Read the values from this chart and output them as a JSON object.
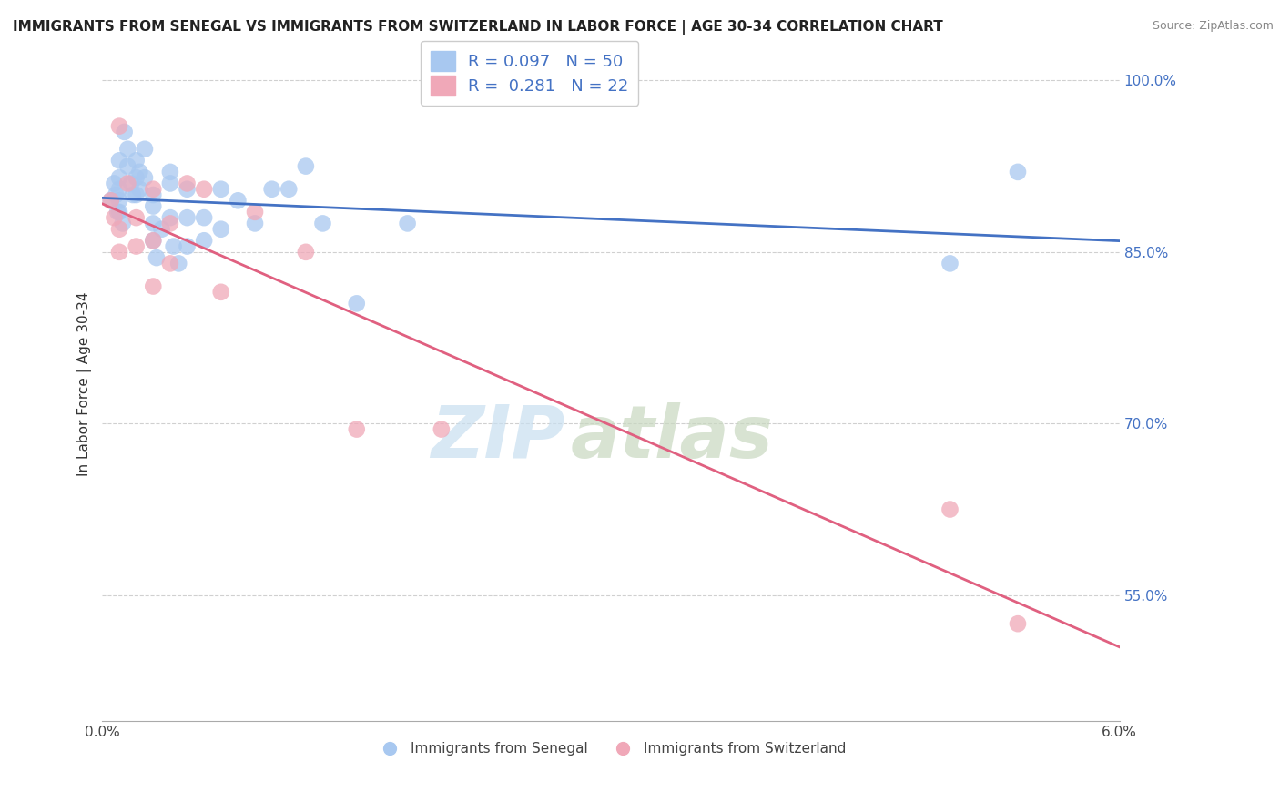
{
  "title": "IMMIGRANTS FROM SENEGAL VS IMMIGRANTS FROM SWITZERLAND IN LABOR FORCE | AGE 30-34 CORRELATION CHART",
  "source": "Source: ZipAtlas.com",
  "xlabel": "",
  "ylabel": "In Labor Force | Age 30-34",
  "xlim": [
    0.0,
    0.06
  ],
  "ylim": [
    0.44,
    1.03
  ],
  "yticks": [
    0.55,
    0.7,
    0.85,
    1.0
  ],
  "ytick_labels": [
    "55.0%",
    "70.0%",
    "85.0%",
    "100.0%"
  ],
  "xticks": [
    0.0,
    0.01,
    0.02,
    0.03,
    0.04,
    0.05,
    0.06
  ],
  "xtick_labels": [
    "0.0%",
    "",
    "",
    "",
    "",
    "",
    "6.0%"
  ],
  "senegal_R": 0.097,
  "senegal_N": 50,
  "switzerland_R": 0.281,
  "switzerland_N": 22,
  "senegal_color": "#a8c8f0",
  "switzerland_color": "#f0a8b8",
  "senegal_line_color": "#4472c4",
  "switzerland_line_color": "#e06080",
  "background_color": "#ffffff",
  "grid_color": "#d0d0d0",
  "senegal_x": [
    0.0005,
    0.0007,
    0.0008,
    0.0009,
    0.001,
    0.001,
    0.001,
    0.001,
    0.001,
    0.0012,
    0.0013,
    0.0015,
    0.0015,
    0.0017,
    0.0018,
    0.002,
    0.002,
    0.002,
    0.0022,
    0.0022,
    0.0025,
    0.0025,
    0.003,
    0.003,
    0.003,
    0.003,
    0.0032,
    0.0035,
    0.004,
    0.004,
    0.004,
    0.0042,
    0.0045,
    0.005,
    0.005,
    0.005,
    0.006,
    0.006,
    0.007,
    0.007,
    0.008,
    0.009,
    0.01,
    0.011,
    0.012,
    0.013,
    0.015,
    0.018,
    0.05,
    0.054
  ],
  "senegal_y": [
    0.895,
    0.91,
    0.9,
    0.885,
    0.93,
    0.915,
    0.905,
    0.895,
    0.885,
    0.875,
    0.955,
    0.94,
    0.925,
    0.91,
    0.9,
    0.93,
    0.915,
    0.9,
    0.92,
    0.905,
    0.94,
    0.915,
    0.9,
    0.89,
    0.875,
    0.86,
    0.845,
    0.87,
    0.92,
    0.91,
    0.88,
    0.855,
    0.84,
    0.905,
    0.88,
    0.855,
    0.88,
    0.86,
    0.905,
    0.87,
    0.895,
    0.875,
    0.905,
    0.905,
    0.925,
    0.875,
    0.805,
    0.875,
    0.84,
    0.92
  ],
  "switzerland_x": [
    0.0005,
    0.0007,
    0.001,
    0.001,
    0.001,
    0.0015,
    0.002,
    0.002,
    0.003,
    0.003,
    0.003,
    0.004,
    0.004,
    0.005,
    0.006,
    0.007,
    0.009,
    0.012,
    0.015,
    0.02,
    0.05,
    0.054
  ],
  "switzerland_y": [
    0.895,
    0.88,
    0.96,
    0.87,
    0.85,
    0.91,
    0.88,
    0.855,
    0.905,
    0.86,
    0.82,
    0.875,
    0.84,
    0.91,
    0.905,
    0.815,
    0.885,
    0.85,
    0.695,
    0.695,
    0.625,
    0.525
  ],
  "title_fontsize": 11,
  "axis_label_fontsize": 11,
  "tick_fontsize": 11
}
